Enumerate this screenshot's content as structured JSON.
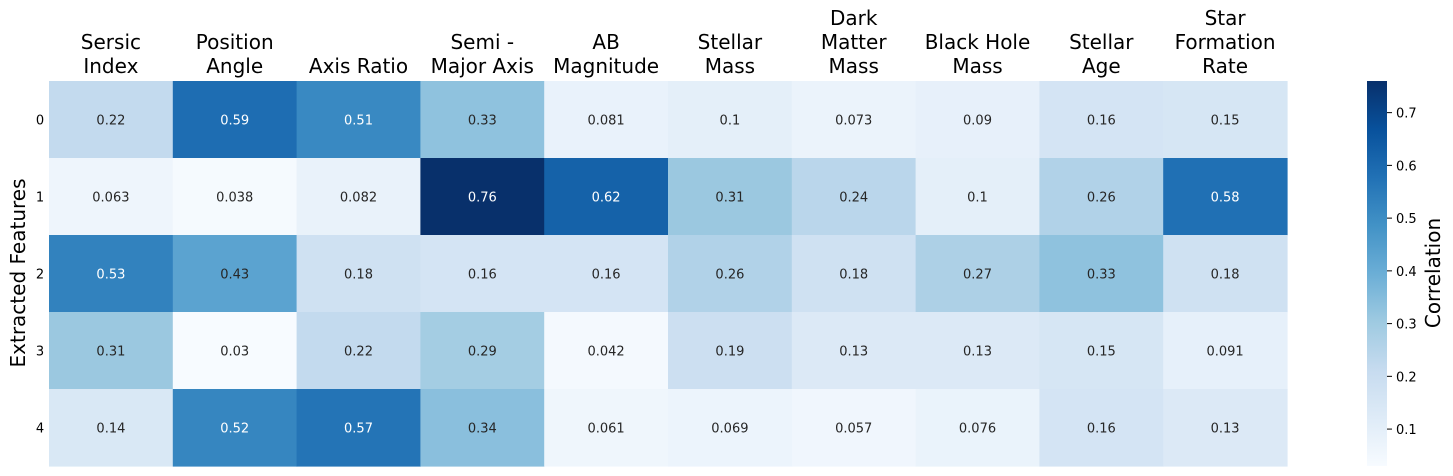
{
  "chart_data": {
    "type": "heatmap",
    "columns": [
      [
        "Sersic",
        "Index"
      ],
      [
        "Position",
        "Angle"
      ],
      [
        "Axis Ratio"
      ],
      [
        "Semi -",
        "Major Axis"
      ],
      [
        "AB",
        "Magnitude"
      ],
      [
        "Stellar",
        "Mass"
      ],
      [
        "Dark",
        "Matter",
        "Mass"
      ],
      [
        "Black Hole",
        "Mass"
      ],
      [
        "Stellar",
        "Age"
      ],
      [
        "Star",
        "Formation",
        "Rate"
      ]
    ],
    "rows": [
      "0",
      "1",
      "2",
      "3",
      "4"
    ],
    "values": [
      [
        0.22,
        0.59,
        0.51,
        0.33,
        0.081,
        0.1,
        0.073,
        0.09,
        0.16,
        0.15
      ],
      [
        0.063,
        0.038,
        0.082,
        0.76,
        0.62,
        0.31,
        0.24,
        0.1,
        0.26,
        0.58
      ],
      [
        0.53,
        0.43,
        0.18,
        0.16,
        0.16,
        0.26,
        0.18,
        0.27,
        0.33,
        0.18
      ],
      [
        0.31,
        0.03,
        0.22,
        0.29,
        0.042,
        0.19,
        0.13,
        0.13,
        0.15,
        0.091
      ],
      [
        0.14,
        0.52,
        0.57,
        0.34,
        0.061,
        0.069,
        0.057,
        0.076,
        0.16,
        0.13
      ]
    ],
    "labels": [
      [
        "0.22",
        "0.59",
        "0.51",
        "0.33",
        "0.081",
        "0.1",
        "0.073",
        "0.09",
        "0.16",
        "0.15"
      ],
      [
        "0.063",
        "0.038",
        "0.082",
        "0.76",
        "0.62",
        "0.31",
        "0.24",
        "0.1",
        "0.26",
        "0.58"
      ],
      [
        "0.53",
        "0.43",
        "0.18",
        "0.16",
        "0.16",
        "0.26",
        "0.18",
        "0.27",
        "0.33",
        "0.18"
      ],
      [
        "0.31",
        "0.03",
        "0.22",
        "0.29",
        "0.042",
        "0.19",
        "0.13",
        "0.13",
        "0.15",
        "0.091"
      ],
      [
        "0.14",
        "0.52",
        "0.57",
        "0.34",
        "0.061",
        "0.069",
        "0.057",
        "0.076",
        "0.16",
        "0.13"
      ]
    ],
    "ylabel": "Extracted Features",
    "colorbar": {
      "label": "Correlation",
      "range": [
        0.03,
        0.76
      ],
      "ticks": [
        0.1,
        0.2,
        0.3,
        0.4,
        0.5,
        0.6,
        0.7
      ],
      "tick_labels": [
        "0.1",
        "0.2",
        "0.3",
        "0.4",
        "0.5",
        "0.6",
        "0.7"
      ],
      "colormap": "Blues"
    },
    "colormap_stops": [
      "#f7fbff",
      "#deebf7",
      "#c6dbef",
      "#9ecae1",
      "#6baed6",
      "#4292c6",
      "#2171b5",
      "#08519c",
      "#08306b"
    ]
  }
}
